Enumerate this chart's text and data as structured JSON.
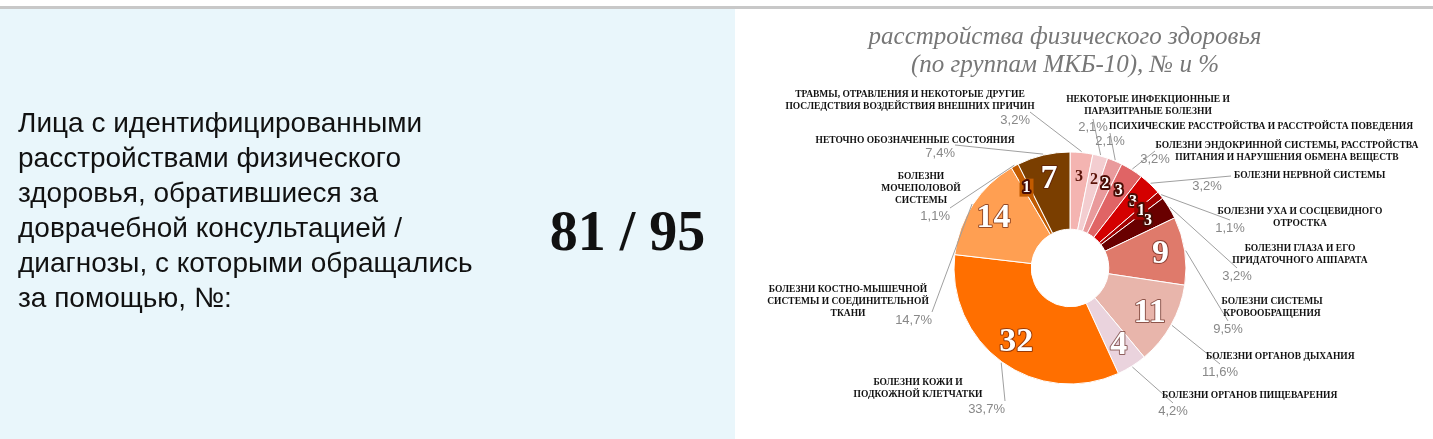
{
  "chart_data": [
    {
      "type": "other",
      "title": "Лица с идентифицированными расстройствами физического здоровья, обратившиеся за доврачебной консультацией / диагнозы, с которыми обращались за помощью, №:",
      "annotations": [
        "81 / 95"
      ]
    },
    {
      "type": "donut",
      "title": "расстройства физического здоровья (по группам МКБ-10), № и %",
      "categories": [
        "ТРАВМЫ, ОТРАВЛЕНИЯ И НЕКОТОРЫЕ ДРУГИЕ ПОСЛЕДСТВИЯ ВОЗДЕЙСТВИЯ ВНЕШНИХ ПРИЧИН",
        "НЕКОТОРЫЕ ИНФЕКЦИОННЫЕ И ПАРАЗИТРАНЫЕ БОЛЕЗНИ",
        "ПСИХИЧЕСКИЕ РАССТРОЙСТВА И РАССТРОЙСТА ПОВЕДЕНИЯ",
        "БОЛЕЗНИ ЭНДОКРИННОЙ СИСТЕМЫ, РАССТРОЙСТВА ПИТАНИЯ И НАРУШЕНИЯ ОБМЕНА ВЕЩЕСТВ",
        "БОЛЕЗНИ НЕРВНОЙ СИСТЕМЫ",
        "БОЛЕЗНИ УХА И СОСЦЕВИДНОГО ОТРОСТКА",
        "БОЛЕЗНИ ГЛАЗА И ЕГО ПРИДАТОЧНОГО АППАРАТА",
        "БОЛЕЗНИ СИСТЕМЫ КРОВООБРАЩЕНИЯ",
        "БОЛЕЗНИ ОРГАНОВ ДЫХАНИЯ",
        "БОЛЕЗНИ ОРГАНОВ ПИЩЕВАРЕНИЯ",
        "БОЛЕЗНИ КОЖИ И ПОДКОЖНОЙ КЛЕТЧАТКИ",
        "БОЛЕЗНИ КОСТНО-МЫШЕЧНОЙ СИСТЕМЫ И СОЕДИНИТЕЛЬНОЙ ТКАНИ",
        "БОЛЕЗНИ МОЧЕПОЛОВОЙ СИСТЕМЫ",
        "НЕТОЧНО ОБОЗНАЧЕННЫЕ СОСТОЯНИЯ"
      ],
      "values": [
        3,
        2,
        2,
        3,
        3,
        1,
        3,
        9,
        11,
        4,
        32,
        14,
        1,
        7
      ],
      "colors": [
        "#f4b4b1",
        "#f3cdd0",
        "#e99a9c",
        "#e06465",
        "#d40000",
        "#a30000",
        "#690000",
        "#df7a6b",
        "#e8b5ab",
        "#ead3dd",
        "#ff6f00",
        "#ff9f52",
        "#c25b00",
        "#7a3e00"
      ],
      "data_labels": true,
      "annotations": [
        "3,2%",
        "2,1%",
        "2,1%",
        "3,2%",
        "3,2%",
        "1,1%",
        "3,2%",
        "9,5%",
        "11,6%",
        "4,2%",
        "33,7%",
        "14,7%",
        "1,1%",
        "7,4%"
      ]
    }
  ]
}
